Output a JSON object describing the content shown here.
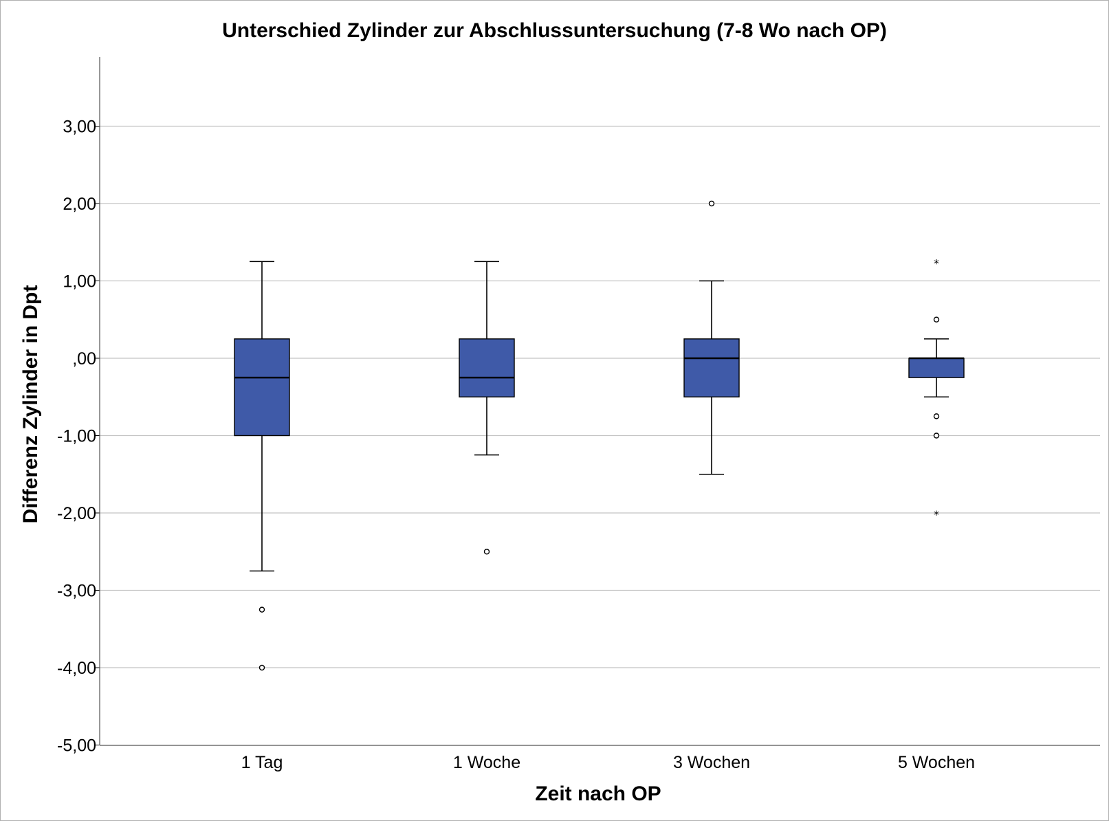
{
  "chart_data": {
    "type": "box",
    "title": "Unterschied Zylinder zur Abschlussuntersuchung (7-8 Wo nach OP)",
    "xlabel": "Zeit nach OP",
    "ylabel": "Differenz Zylinder in Dpt",
    "ylim": [
      -5,
      3.9
    ],
    "yticks": [
      3,
      2,
      1,
      0,
      -1,
      -2,
      -3,
      -4,
      -5
    ],
    "ytick_labels": [
      "3,00",
      "2,00",
      "1,00",
      ",00",
      "-1,00",
      "-2,00",
      "-3,00",
      "-4,00",
      "-5,00"
    ],
    "grid": "horizontal",
    "box_color": "#3f5aa8",
    "categories": [
      "1 Tag",
      "1 Woche",
      "3 Wochen",
      "5 Wochen"
    ],
    "boxes": [
      {
        "whisker_low": -2.75,
        "q1": -1.0,
        "median": -0.25,
        "q3": 0.25,
        "whisker_high": 1.25,
        "outliers": [
          -3.25,
          -4.0
        ],
        "extremes": []
      },
      {
        "whisker_low": -1.25,
        "q1": -0.5,
        "median": -0.25,
        "q3": 0.25,
        "whisker_high": 1.25,
        "outliers": [
          -2.5
        ],
        "extremes": []
      },
      {
        "whisker_low": -1.5,
        "q1": -0.5,
        "median": 0.0,
        "q3": 0.25,
        "whisker_high": 1.0,
        "outliers": [
          2.0
        ],
        "extremes": []
      },
      {
        "whisker_low": -0.5,
        "q1": -0.25,
        "median": 0.0,
        "q3": 0.0,
        "whisker_high": 0.25,
        "outliers": [
          0.5,
          -0.75,
          -1.0
        ],
        "extremes": [
          1.25,
          -2.0
        ]
      }
    ]
  }
}
